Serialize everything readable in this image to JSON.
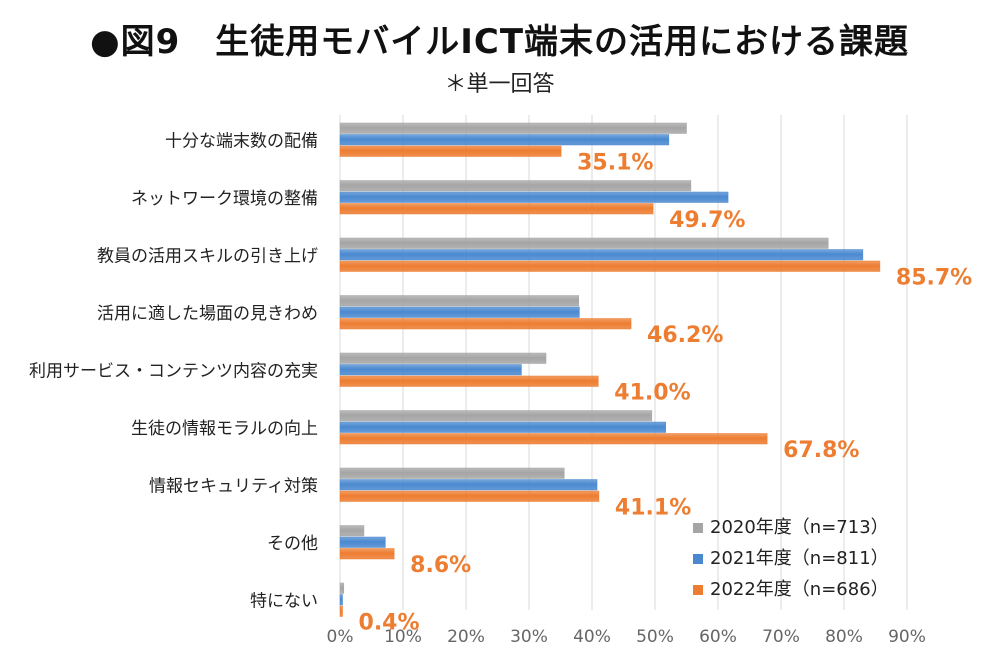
{
  "title": "●図9　生徒用モバイルICT端末の活用における課題",
  "subtitle": "＊単一回答",
  "colors": {
    "s2020": "#A5A5A5",
    "s2021": "#4A89D0",
    "s2022": "#ED7D31"
  },
  "chart_data": {
    "type": "bar",
    "orientation": "horizontal",
    "categories": [
      "十分な端末数の配備",
      "ネットワーク環境の整備",
      "教員の活用スキルの引き上げ",
      "活用に適した場面の見きわめ",
      "利用サービス・コンテンツ内容の充実",
      "生徒の情報モラルの向上",
      "情報セキュリティ対策",
      "その他",
      "特にない"
    ],
    "series": [
      {
        "name": "2020年度（n=713）",
        "values": [
          55.0,
          55.7,
          77.5,
          37.9,
          32.7,
          49.5,
          35.6,
          3.8,
          0.6
        ]
      },
      {
        "name": "2021年度（n=811）",
        "values": [
          52.2,
          61.6,
          83.0,
          38.0,
          28.8,
          51.7,
          40.8,
          7.2,
          0.4
        ]
      },
      {
        "name": "2022年度（n=686）",
        "values": [
          35.1,
          49.7,
          85.7,
          46.2,
          41.0,
          67.8,
          41.1,
          8.6,
          0.4
        ]
      }
    ],
    "data_labels": [
      "35.1%",
      "49.7%",
      "85.7%",
      "46.2%",
      "41.0%",
      "67.8%",
      "41.1%",
      "8.6%",
      "0.4%"
    ],
    "xticks": [
      "0%",
      "10%",
      "20%",
      "30%",
      "40%",
      "50%",
      "60%",
      "70%",
      "80%",
      "90%"
    ],
    "xlim": [
      0,
      90
    ],
    "grid": true,
    "legend_position": "bottom-right"
  }
}
